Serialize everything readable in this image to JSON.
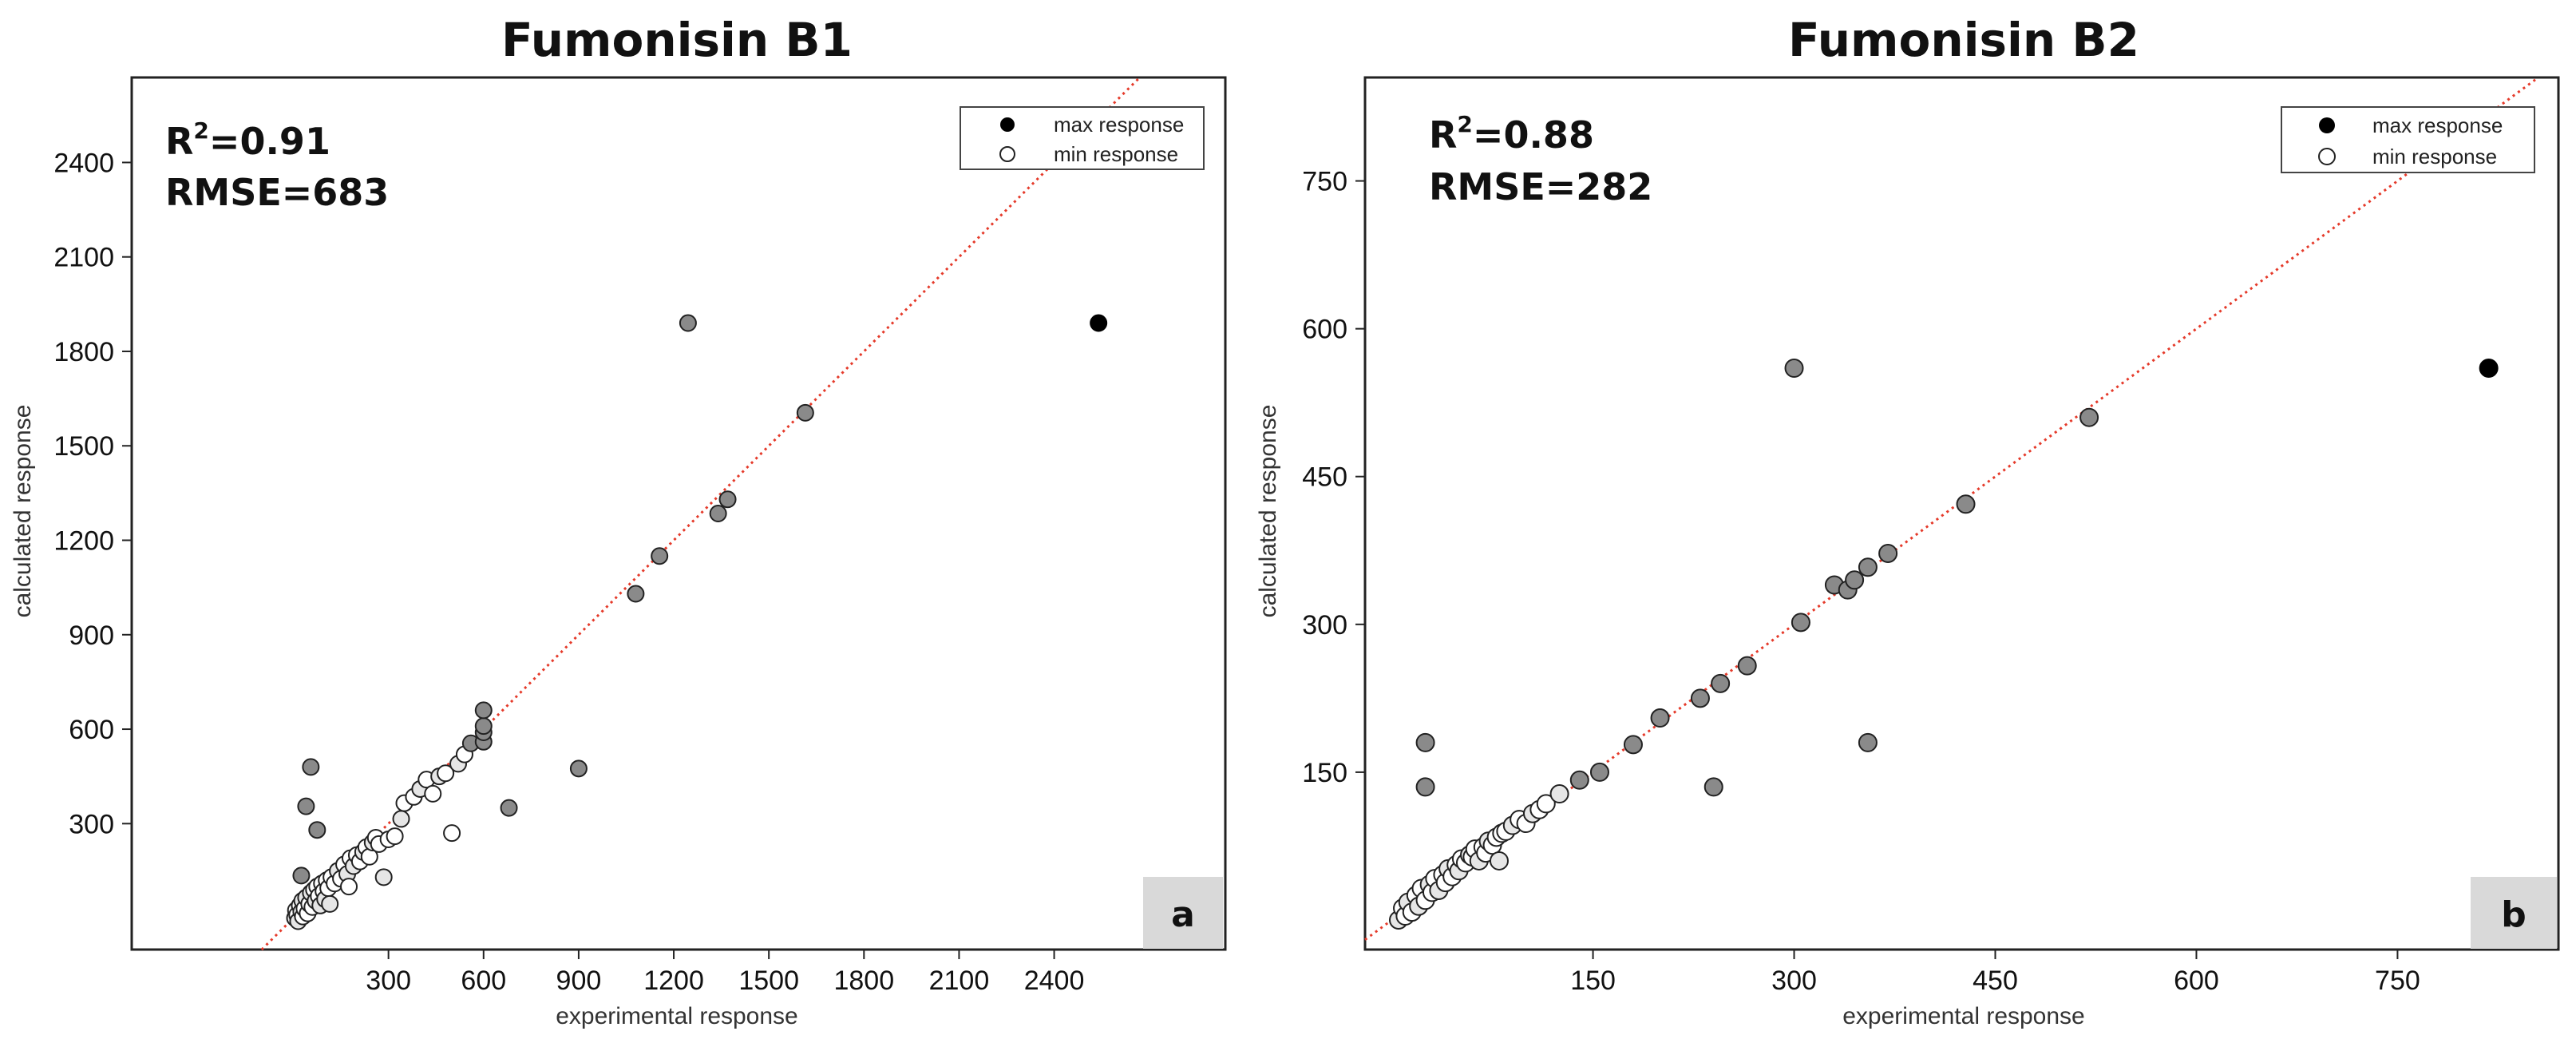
{
  "chart_data": [
    {
      "type": "scatter",
      "title": "Fumonisin B1",
      "xlabel": "experimental response",
      "ylabel": "calculated response",
      "stats": {
        "r2_prefix": "R",
        "r2_sup": "2",
        "r2_value": "=0.91",
        "rmse": "RMSE=683"
      },
      "panel_label": "a",
      "xlim": [
        -510,
        2940
      ],
      "ylim": [
        -100,
        2670
      ],
      "xticks": [
        300,
        600,
        900,
        1200,
        1500,
        1800,
        2100,
        2400
      ],
      "yticks": [
        300,
        600,
        900,
        1200,
        1500,
        1800,
        2100,
        2400
      ],
      "legend": [
        {
          "label": "max response",
          "marker": "filled"
        },
        {
          "label": "min response",
          "marker": "open"
        }
      ],
      "legend_position": "top-right",
      "diagonal": "y = x",
      "max_point": [
        2540,
        1890
      ],
      "min_points": [
        [
          5,
          0
        ],
        [
          8,
          25
        ],
        [
          12,
          10
        ],
        [
          15,
          -10
        ],
        [
          20,
          40
        ],
        [
          25,
          20
        ],
        [
          28,
          55
        ],
        [
          30,
          5
        ],
        [
          35,
          30
        ],
        [
          40,
          65
        ],
        [
          45,
          15
        ],
        [
          50,
          45
        ],
        [
          55,
          80
        ],
        [
          60,
          35
        ],
        [
          65,
          90
        ],
        [
          70,
          55
        ],
        [
          75,
          100
        ],
        [
          80,
          70
        ],
        [
          85,
          40
        ],
        [
          90,
          110
        ],
        [
          95,
          85
        ],
        [
          100,
          60
        ],
        [
          105,
          120
        ],
        [
          110,
          95
        ],
        [
          115,
          45
        ],
        [
          120,
          130
        ],
        [
          130,
          110
        ],
        [
          140,
          150
        ],
        [
          150,
          125
        ],
        [
          160,
          170
        ],
        [
          170,
          140
        ],
        [
          175,
          100
        ],
        [
          180,
          190
        ],
        [
          190,
          165
        ],
        [
          200,
          200
        ],
        [
          210,
          180
        ],
        [
          220,
          210
        ],
        [
          230,
          225
        ],
        [
          240,
          195
        ],
        [
          250,
          240
        ],
        [
          260,
          255
        ],
        [
          270,
          235
        ],
        [
          285,
          130
        ],
        [
          300,
          250
        ],
        [
          320,
          260
        ],
        [
          340,
          315
        ],
        [
          350,
          365
        ],
        [
          380,
          385
        ],
        [
          400,
          410
        ],
        [
          420,
          440
        ],
        [
          440,
          395
        ],
        [
          460,
          450
        ],
        [
          480,
          460
        ],
        [
          500,
          270
        ],
        [
          520,
          490
        ],
        [
          540,
          520
        ],
        [
          560,
          555
        ],
        [
          600,
          560
        ],
        [
          600,
          590
        ],
        [
          600,
          610
        ],
        [
          600,
          660
        ],
        [
          680,
          350
        ],
        [
          900,
          475
        ],
        [
          1080,
          1030
        ],
        [
          1155,
          1150
        ],
        [
          1245,
          1890
        ],
        [
          1340,
          1285
        ],
        [
          1370,
          1330
        ],
        [
          1615,
          1605
        ],
        [
          25,
          135
        ],
        [
          40,
          355
        ],
        [
          55,
          480
        ],
        [
          75,
          280
        ]
      ],
      "shaded_points_from_index": 56
    },
    {
      "type": "scatter",
      "title": "Fumonisin B2",
      "xlabel": "experimental response",
      "ylabel": "calculated response",
      "stats": {
        "r2_prefix": "R",
        "r2_sup": "2",
        "r2_value": "=0.88",
        "rmse": "RMSE=282"
      },
      "panel_label": "b",
      "xlim": [
        -20,
        870
      ],
      "ylim": [
        -30,
        855
      ],
      "xticks": [
        150,
        300,
        450,
        600,
        750
      ],
      "yticks": [
        150,
        300,
        450,
        600,
        750
      ],
      "legend": [
        {
          "label": "max response",
          "marker": "filled"
        },
        {
          "label": "min response",
          "marker": "open"
        }
      ],
      "legend_position": "top-right",
      "diagonal": "y = x",
      "max_point": [
        818,
        560
      ],
      "min_points": [
        [
          5,
          0
        ],
        [
          8,
          12
        ],
        [
          10,
          4
        ],
        [
          12,
          18
        ],
        [
          15,
          8
        ],
        [
          18,
          25
        ],
        [
          20,
          14
        ],
        [
          22,
          32
        ],
        [
          25,
          20
        ],
        [
          28,
          36
        ],
        [
          30,
          28
        ],
        [
          32,
          42
        ],
        [
          35,
          30
        ],
        [
          38,
          46
        ],
        [
          40,
          38
        ],
        [
          42,
          52
        ],
        [
          45,
          44
        ],
        [
          48,
          56
        ],
        [
          50,
          50
        ],
        [
          52,
          62
        ],
        [
          55,
          58
        ],
        [
          58,
          66
        ],
        [
          60,
          64
        ],
        [
          62,
          72
        ],
        [
          65,
          60
        ],
        [
          68,
          74
        ],
        [
          70,
          68
        ],
        [
          72,
          80
        ],
        [
          75,
          76
        ],
        [
          78,
          84
        ],
        [
          80,
          60
        ],
        [
          82,
          88
        ],
        [
          85,
          90
        ],
        [
          90,
          96
        ],
        [
          95,
          102
        ],
        [
          100,
          98
        ],
        [
          105,
          108
        ],
        [
          110,
          112
        ],
        [
          115,
          118
        ],
        [
          125,
          128
        ],
        [
          140,
          142
        ],
        [
          155,
          150
        ],
        [
          180,
          178
        ],
        [
          200,
          205
        ],
        [
          230,
          225
        ],
        [
          245,
          240
        ],
        [
          265,
          258
        ],
        [
          305,
          302
        ],
        [
          330,
          340
        ],
        [
          340,
          335
        ],
        [
          345,
          345
        ],
        [
          355,
          358
        ],
        [
          370,
          372
        ],
        [
          428,
          422
        ],
        [
          520,
          510
        ],
        [
          300,
          560
        ],
        [
          355,
          180
        ],
        [
          240,
          135
        ],
        [
          25,
          180
        ],
        [
          25,
          135
        ]
      ],
      "shaded_points_from_index": 40
    }
  ]
}
